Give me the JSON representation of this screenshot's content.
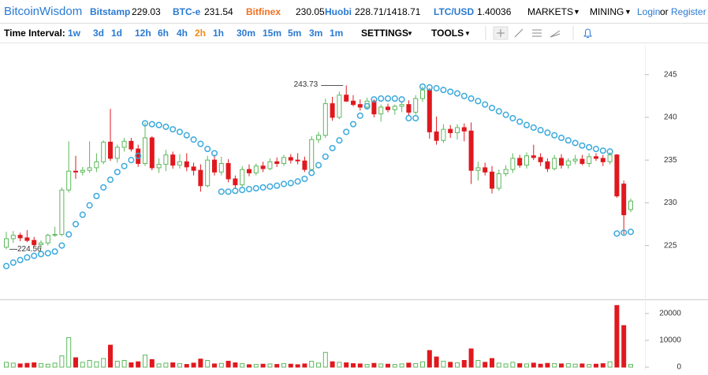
{
  "header": {
    "brand": "BitcoinWisdom",
    "tickers": [
      {
        "name": "Bitstamp",
        "price": "229.03"
      },
      {
        "name": "BTC-e",
        "price": "231.54"
      },
      {
        "name": "Bitfinex",
        "price": "230.05"
      },
      {
        "name": "Huobi",
        "price": "228.71/1418.71"
      },
      {
        "name": "LTC/USD",
        "price": "1.40036"
      }
    ],
    "menus": [
      "MARKETS",
      "MINING"
    ],
    "login": "Login",
    "or": "or",
    "register": "Register"
  },
  "toolbar": {
    "label": "Time Interval:",
    "intervals": [
      "1w",
      "3d",
      "1d",
      "12h",
      "6h",
      "4h",
      "2h",
      "1h",
      "30m",
      "15m",
      "5m",
      "3m",
      "1m"
    ],
    "settings": "SETTINGS",
    "tools": "TOOLS"
  },
  "chart_data": [
    {
      "type": "candlestick",
      "up_color": "#5cb85c",
      "down_color": "#e0181e",
      "sar_color": "#3aa9dc",
      "open": [
        224.8,
        225.8,
        226.2,
        225.9,
        225.6,
        225.1,
        225.3,
        226.2,
        226.3,
        231.5,
        233.7,
        233.6,
        233.8,
        234.1,
        234.8,
        237.1,
        235.2,
        236.5,
        237.2,
        236.3,
        234.6,
        237.6,
        234.1,
        234.5,
        235.6,
        234.4,
        234.8,
        234.2,
        233.8,
        232,
        235,
        233.6,
        234.6,
        232.8,
        232.1,
        233.9,
        233.5,
        234.3,
        234.0,
        234.8,
        234.6,
        235.3,
        235.0,
        234.9,
        233.9,
        237.4,
        237.9,
        241.6,
        240.0,
        242.6,
        241.9,
        241.5,
        241.2,
        241.9,
        240.4,
        241.2,
        240.9,
        241.3,
        241.5,
        240.6,
        242.2,
        243.2,
        238.3,
        237.3,
        238.6,
        238.2,
        238.8,
        238.4,
        233.8,
        234.1,
        233.6,
        231.7,
        233.4,
        233.9,
        235.2,
        234.4,
        235.5,
        235.3,
        234.8,
        234,
        235.2,
        234.4,
        234.9,
        235.1,
        234.6,
        235.4,
        235.2,
        234.8,
        235.6,
        232.2,
        229.2
      ],
      "high": [
        226.6,
        226.7,
        226.5,
        226.8,
        226,
        225.6,
        226.4,
        227.2,
        231.8,
        237.2,
        235.5,
        234.2,
        237.2,
        235.8,
        237.3,
        241,
        236.8,
        237.6,
        237.6,
        236.8,
        239.4,
        237.8,
        235.2,
        236.2,
        236,
        235.7,
        235.8,
        234.7,
        234.5,
        235.5,
        235.6,
        235.4,
        235.1,
        233.2,
        234.3,
        234.5,
        234.6,
        234.8,
        235.2,
        235.3,
        235.6,
        235.7,
        235.8,
        235.4,
        237.8,
        238.3,
        242.2,
        242.4,
        243,
        243.73,
        242.6,
        242.1,
        242.3,
        242.1,
        241.5,
        241.6,
        241.5,
        241.9,
        242,
        242.6,
        243.6,
        243.4,
        240.1,
        239.2,
        239.1,
        239.2,
        239.3,
        239.4,
        234.8,
        234.7,
        234.3,
        233.9,
        234.4,
        235.8,
        235.6,
        235.9,
        236.8,
        235.8,
        235.2,
        235.6,
        235.7,
        235.2,
        235.6,
        235.6,
        235.8,
        235.8,
        235.6,
        235.9,
        235.7,
        232.6,
        230.5
      ],
      "low": [
        224.56,
        225.3,
        225.5,
        225.4,
        224.9,
        224.6,
        225,
        226,
        226.1,
        231.2,
        232.8,
        233.2,
        233.5,
        233.6,
        234.5,
        234.9,
        234.7,
        236,
        236,
        234.2,
        234.3,
        233.8,
        233.5,
        233.7,
        234,
        234,
        233.7,
        233.2,
        231.3,
        231.8,
        233.2,
        233.2,
        232.4,
        231.6,
        231.8,
        233.1,
        233.2,
        233.6,
        233.8,
        234.2,
        234.3,
        234.6,
        234.5,
        233.6,
        233.7,
        237.0,
        237.6,
        239.6,
        239.8,
        241.8,
        241.3,
        240.8,
        240.9,
        240,
        239.5,
        240.6,
        240.3,
        240.6,
        240.2,
        240.3,
        241.8,
        237.5,
        236.8,
        237,
        237.6,
        237.4,
        237.2,
        232.2,
        232.6,
        233.2,
        231.1,
        231.4,
        233.1,
        233.5,
        234.1,
        234,
        235,
        234.3,
        233.6,
        233.8,
        234,
        234,
        234.5,
        234.4,
        234.2,
        234.9,
        234.3,
        234.5,
        230.6,
        226.3,
        228.9
      ],
      "close": [
        225.8,
        226.2,
        225.9,
        225.6,
        225.1,
        225.3,
        226.2,
        226.3,
        231.5,
        233.7,
        233.6,
        233.8,
        234.1,
        234.8,
        237.1,
        235.2,
        236.5,
        237.2,
        236.3,
        234.6,
        237.6,
        234.1,
        234.5,
        235.6,
        234.4,
        234.8,
        234.2,
        233.8,
        232,
        235,
        233.6,
        234.6,
        232.8,
        232.1,
        233.9,
        233.5,
        234.3,
        234.0,
        234.8,
        234.6,
        235.3,
        235.0,
        234.9,
        233.9,
        237.4,
        237.9,
        241.6,
        240.0,
        242.6,
        241.9,
        241.5,
        241.2,
        241.9,
        240.4,
        241.2,
        240.9,
        241.3,
        241.5,
        240.6,
        242.2,
        243.2,
        238.3,
        237.3,
        238.6,
        238.2,
        238.8,
        238.4,
        233.8,
        234.1,
        233.6,
        231.7,
        233.4,
        233.9,
        235.2,
        234.4,
        235.5,
        235.3,
        234.8,
        234,
        235.2,
        234.4,
        234.9,
        235.1,
        234.6,
        235.4,
        235.2,
        234.8,
        235.6,
        230.8,
        228.6,
        230.2
      ],
      "sar": [
        222.6,
        223.0,
        223.3,
        223.6,
        223.8,
        224.0,
        224.1,
        224.3,
        225.0,
        226.3,
        227.5,
        228.6,
        229.7,
        230.8,
        231.8,
        232.7,
        233.6,
        234.3,
        235.0,
        235.5,
        239.3,
        239.2,
        239.1,
        238.9,
        238.6,
        238.3,
        237.9,
        237.4,
        236.9,
        236.3,
        235.8,
        231.3,
        231.3,
        231.4,
        231.5,
        231.6,
        231.7,
        231.8,
        231.9,
        232.0,
        232.2,
        232.3,
        232.5,
        232.8,
        233.5,
        234.4,
        235.4,
        236.4,
        237.3,
        238.3,
        239.2,
        240.2,
        241.3,
        242.1,
        242.2,
        242.2,
        242.2,
        242.1,
        239.9,
        239.9,
        243.6,
        243.5,
        243.4,
        243.2,
        243.0,
        242.8,
        242.5,
        242.2,
        241.9,
        241.5,
        241.1,
        240.7,
        240.3,
        239.9,
        239.5,
        239.1,
        238.8,
        238.5,
        238.2,
        237.9,
        237.6,
        237.3,
        237.0,
        236.7,
        236.5,
        236.3,
        236.1,
        236.0,
        226.4,
        226.5,
        226.6
      ],
      "annotations": [
        {
          "value": 243.73
        },
        {
          "value": 224.56
        }
      ],
      "ylim": [
        218.7,
        248.2
      ],
      "yticks": [
        225,
        230,
        235,
        240,
        245
      ],
      "grid": false
    },
    {
      "type": "bar",
      "values": [
        1800,
        1500,
        1200,
        1400,
        1600,
        1300,
        1100,
        1500,
        4200,
        11000,
        3500,
        1800,
        2500,
        2000,
        3200,
        8200,
        2200,
        2500,
        1600,
        2000,
        4500,
        2800,
        1200,
        1500,
        1600,
        1300,
        1000,
        1500,
        3000,
        2500,
        1200,
        1400,
        2200,
        1600,
        1300,
        900,
        1000,
        1100,
        1200,
        1000,
        1300,
        1100,
        900,
        1200,
        2200,
        1500,
        5500,
        2000,
        1800,
        1600,
        1300,
        1200,
        1000,
        1400,
        1200,
        1100,
        1000,
        1200,
        1500,
        1300,
        2000,
        6200,
        3800,
        2200,
        1800,
        1600,
        2500,
        6800,
        2500,
        1800,
        3200,
        1500,
        1200,
        1800,
        1300,
        1200,
        1500,
        1100,
        1400,
        1300,
        1200,
        1300,
        1100,
        1200,
        1000,
        1100,
        1300,
        2000,
        23000,
        15500,
        1000
      ],
      "ylim": [
        0,
        24700
      ],
      "yticks": [
        0,
        10000,
        20000
      ]
    }
  ]
}
